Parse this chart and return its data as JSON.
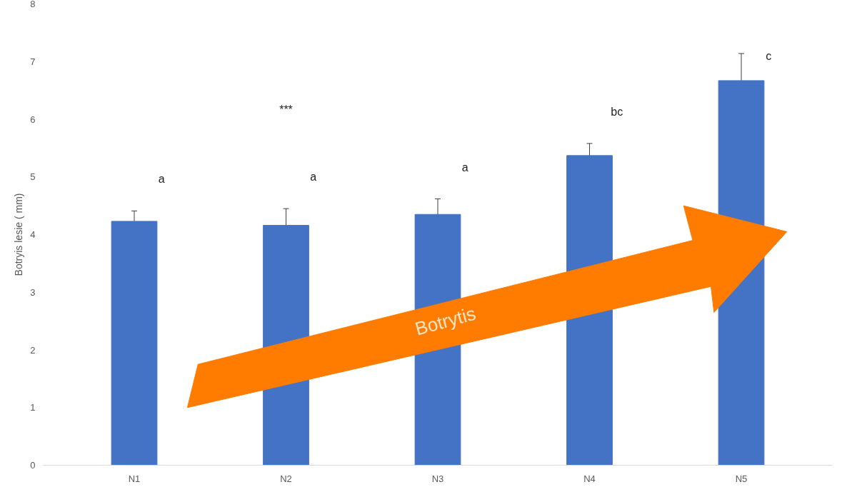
{
  "chart_data": {
    "type": "bar",
    "ylabel": "Botryis lesie ( mm)",
    "categories": [
      "N1",
      "N2",
      "N3",
      "N4",
      "N5"
    ],
    "values": [
      4.23,
      4.16,
      4.35,
      5.37,
      6.67
    ],
    "errors": [
      0.18,
      0.29,
      0.27,
      0.21,
      0.47
    ],
    "color": "#4472c4",
    "ylim": [
      0,
      8
    ],
    "yticks": [
      0,
      1,
      2,
      3,
      4,
      5,
      6,
      7,
      8
    ],
    "grid": false,
    "annotations": [
      "a",
      "a",
      "a",
      "bc",
      "c",
      "***",
      "Botrytis"
    ]
  }
}
